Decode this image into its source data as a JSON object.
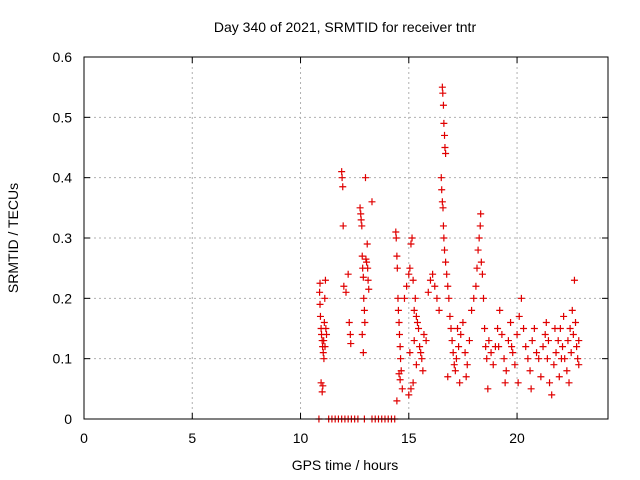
{
  "chart_data": {
    "type": "scatter",
    "title": "Day 340 of 2021, SRMTID for receiver tntr",
    "xlabel": "GPS time / hours",
    "ylabel": "SRMTID / TECUs",
    "xlim": [
      0,
      24.2
    ],
    "ylim": [
      0,
      0.6
    ],
    "x_ticks": [
      0,
      5,
      10,
      15,
      20
    ],
    "x_tick_labels": [
      "0",
      "5",
      "10",
      "15",
      "20"
    ],
    "y_ticks": [
      0,
      0.1,
      0.2,
      0.3,
      0.4,
      0.5,
      0.6
    ],
    "y_tick_labels": [
      "0",
      "0.1",
      "0.2",
      "0.3",
      "0.4",
      "0.5",
      "0.6"
    ],
    "grid": true,
    "marker": "+",
    "colors": {
      "series": "#e00000",
      "grid": "#b0b0b0",
      "axis": "#000000"
    },
    "series": [
      {
        "name": "SRMTID",
        "points": [
          [
            10.85,
            0.0
          ],
          [
            11.3,
            0.0
          ],
          [
            11.45,
            0.0
          ],
          [
            11.6,
            0.0
          ],
          [
            11.75,
            0.0
          ],
          [
            11.9,
            0.0
          ],
          [
            12.05,
            0.0
          ],
          [
            12.2,
            0.0
          ],
          [
            12.35,
            0.0
          ],
          [
            12.5,
            0.0
          ],
          [
            12.65,
            0.0
          ],
          [
            12.95,
            0.0
          ],
          [
            13.3,
            0.0
          ],
          [
            13.45,
            0.0
          ],
          [
            13.6,
            0.0
          ],
          [
            13.75,
            0.0
          ],
          [
            13.9,
            0.0
          ],
          [
            14.05,
            0.0
          ],
          [
            14.2,
            0.0
          ],
          [
            14.35,
            0.0
          ],
          [
            10.88,
            0.21
          ],
          [
            10.9,
            0.19
          ],
          [
            10.92,
            0.17
          ],
          [
            10.95,
            0.15
          ],
          [
            10.97,
            0.14
          ],
          [
            11.0,
            0.13
          ],
          [
            11.02,
            0.12
          ],
          [
            11.05,
            0.11
          ],
          [
            11.07,
            0.13
          ],
          [
            11.1,
            0.16
          ],
          [
            11.12,
            0.2
          ],
          [
            11.15,
            0.23
          ],
          [
            11.17,
            0.15
          ],
          [
            11.2,
            0.14
          ],
          [
            10.95,
            0.06
          ],
          [
            11.0,
            0.045
          ],
          [
            11.03,
            0.055
          ],
          [
            11.08,
            0.1
          ],
          [
            11.13,
            0.12
          ],
          [
            10.9,
            0.225
          ],
          [
            11.9,
            0.41
          ],
          [
            11.92,
            0.4
          ],
          [
            11.95,
            0.385
          ],
          [
            11.97,
            0.32
          ],
          [
            12.0,
            0.22
          ],
          [
            12.1,
            0.21
          ],
          [
            12.2,
            0.24
          ],
          [
            12.25,
            0.16
          ],
          [
            12.3,
            0.14
          ],
          [
            12.32,
            0.125
          ],
          [
            12.75,
            0.35
          ],
          [
            12.78,
            0.34
          ],
          [
            12.8,
            0.33
          ],
          [
            12.83,
            0.32
          ],
          [
            12.85,
            0.27
          ],
          [
            12.87,
            0.25
          ],
          [
            12.9,
            0.235
          ],
          [
            12.92,
            0.2
          ],
          [
            12.95,
            0.18
          ],
          [
            12.97,
            0.16
          ],
          [
            13.0,
            0.4
          ],
          [
            13.02,
            0.265
          ],
          [
            13.05,
            0.26
          ],
          [
            13.08,
            0.29
          ],
          [
            13.1,
            0.25
          ],
          [
            13.12,
            0.23
          ],
          [
            13.15,
            0.215
          ],
          [
            12.85,
            0.14
          ],
          [
            12.9,
            0.11
          ],
          [
            13.3,
            0.36
          ],
          [
            14.4,
            0.31
          ],
          [
            14.42,
            0.3
          ],
          [
            14.45,
            0.27
          ],
          [
            14.47,
            0.25
          ],
          [
            14.5,
            0.2
          ],
          [
            14.52,
            0.18
          ],
          [
            14.55,
            0.16
          ],
          [
            14.57,
            0.14
          ],
          [
            14.6,
            0.12
          ],
          [
            14.62,
            0.1
          ],
          [
            14.65,
            0.08
          ],
          [
            14.6,
            0.065
          ],
          [
            14.7,
            0.05
          ],
          [
            14.55,
            0.075
          ],
          [
            14.45,
            0.03
          ],
          [
            14.8,
            0.2
          ],
          [
            14.9,
            0.22
          ],
          [
            15.0,
            0.24
          ],
          [
            15.05,
            0.25
          ],
          [
            15.1,
            0.29
          ],
          [
            15.15,
            0.3
          ],
          [
            15.2,
            0.23
          ],
          [
            15.25,
            0.18
          ],
          [
            15.3,
            0.2
          ],
          [
            15.35,
            0.17
          ],
          [
            15.4,
            0.16
          ],
          [
            15.45,
            0.15
          ],
          [
            15.5,
            0.12
          ],
          [
            15.55,
            0.11
          ],
          [
            15.6,
            0.1
          ],
          [
            15.7,
            0.14
          ],
          [
            15.8,
            0.13
          ],
          [
            15.9,
            0.21
          ],
          [
            16.0,
            0.23
          ],
          [
            16.1,
            0.24
          ],
          [
            16.2,
            0.22
          ],
          [
            16.3,
            0.2
          ],
          [
            16.4,
            0.18
          ],
          [
            15.0,
            0.04
          ],
          [
            15.1,
            0.05
          ],
          [
            15.2,
            0.06
          ],
          [
            15.35,
            0.09
          ],
          [
            15.65,
            0.08
          ],
          [
            15.05,
            0.11
          ],
          [
            15.25,
            0.13
          ],
          [
            16.55,
            0.55
          ],
          [
            16.57,
            0.54
          ],
          [
            16.6,
            0.52
          ],
          [
            16.62,
            0.49
          ],
          [
            16.65,
            0.47
          ],
          [
            16.67,
            0.45
          ],
          [
            16.7,
            0.44
          ],
          [
            16.5,
            0.4
          ],
          [
            16.52,
            0.38
          ],
          [
            16.55,
            0.36
          ],
          [
            16.58,
            0.35
          ],
          [
            16.6,
            0.32
          ],
          [
            16.62,
            0.3
          ],
          [
            16.65,
            0.28
          ],
          [
            16.7,
            0.26
          ],
          [
            16.75,
            0.24
          ],
          [
            16.8,
            0.22
          ],
          [
            16.85,
            0.2
          ],
          [
            16.9,
            0.17
          ],
          [
            16.95,
            0.15
          ],
          [
            17.0,
            0.13
          ],
          [
            17.05,
            0.11
          ],
          [
            17.1,
            0.09
          ],
          [
            17.15,
            0.08
          ],
          [
            16.8,
            0.07
          ],
          [
            17.2,
            0.1
          ],
          [
            17.3,
            0.12
          ],
          [
            17.4,
            0.14
          ],
          [
            17.5,
            0.16
          ],
          [
            17.6,
            0.11
          ],
          [
            17.7,
            0.09
          ],
          [
            17.8,
            0.13
          ],
          [
            17.9,
            0.18
          ],
          [
            18.0,
            0.2
          ],
          [
            18.1,
            0.22
          ],
          [
            18.15,
            0.25
          ],
          [
            18.2,
            0.28
          ],
          [
            18.25,
            0.3
          ],
          [
            18.3,
            0.32
          ],
          [
            18.32,
            0.34
          ],
          [
            18.35,
            0.26
          ],
          [
            18.4,
            0.24
          ],
          [
            18.45,
            0.2
          ],
          [
            18.5,
            0.15
          ],
          [
            18.55,
            0.12
          ],
          [
            18.6,
            0.1
          ],
          [
            18.65,
            0.05
          ],
          [
            17.35,
            0.06
          ],
          [
            17.65,
            0.07
          ],
          [
            17.25,
            0.15
          ],
          [
            18.7,
            0.13
          ],
          [
            18.8,
            0.11
          ],
          [
            18.9,
            0.09
          ],
          [
            19.0,
            0.12
          ],
          [
            19.1,
            0.15
          ],
          [
            19.2,
            0.18
          ],
          [
            19.3,
            0.14
          ],
          [
            19.4,
            0.1
          ],
          [
            19.5,
            0.08
          ],
          [
            19.6,
            0.13
          ],
          [
            19.7,
            0.16
          ],
          [
            19.8,
            0.11
          ],
          [
            19.9,
            0.09
          ],
          [
            20.0,
            0.14
          ],
          [
            20.1,
            0.17
          ],
          [
            20.2,
            0.2
          ],
          [
            20.3,
            0.15
          ],
          [
            20.4,
            0.12
          ],
          [
            20.5,
            0.1
          ],
          [
            20.6,
            0.08
          ],
          [
            20.7,
            0.13
          ],
          [
            20.8,
            0.15
          ],
          [
            20.9,
            0.11
          ],
          [
            21.0,
            0.1
          ],
          [
            21.1,
            0.07
          ],
          [
            20.05,
            0.06
          ],
          [
            19.45,
            0.06
          ],
          [
            20.65,
            0.05
          ],
          [
            19.15,
            0.12
          ],
          [
            19.75,
            0.12
          ],
          [
            21.2,
            0.12
          ],
          [
            21.3,
            0.14
          ],
          [
            21.4,
            0.1
          ],
          [
            21.5,
            0.06
          ],
          [
            21.6,
            0.04
          ],
          [
            21.7,
            0.09
          ],
          [
            21.8,
            0.11
          ],
          [
            21.9,
            0.13
          ],
          [
            22.0,
            0.15
          ],
          [
            22.1,
            0.12
          ],
          [
            22.2,
            0.1
          ],
          [
            22.3,
            0.08
          ],
          [
            22.4,
            0.06
          ],
          [
            22.5,
            0.11
          ],
          [
            22.6,
            0.14
          ],
          [
            22.65,
            0.23
          ],
          [
            22.7,
            0.16
          ],
          [
            22.75,
            0.12
          ],
          [
            22.8,
            0.1
          ],
          [
            22.85,
            0.09
          ],
          [
            21.35,
            0.16
          ],
          [
            21.75,
            0.15
          ],
          [
            22.15,
            0.17
          ],
          [
            22.55,
            0.18
          ],
          [
            22.35,
            0.13
          ],
          [
            21.95,
            0.07
          ],
          [
            21.45,
            0.13
          ],
          [
            22.45,
            0.15
          ],
          [
            22.85,
            0.13
          ],
          [
            22.05,
            0.1
          ]
        ]
      }
    ]
  }
}
